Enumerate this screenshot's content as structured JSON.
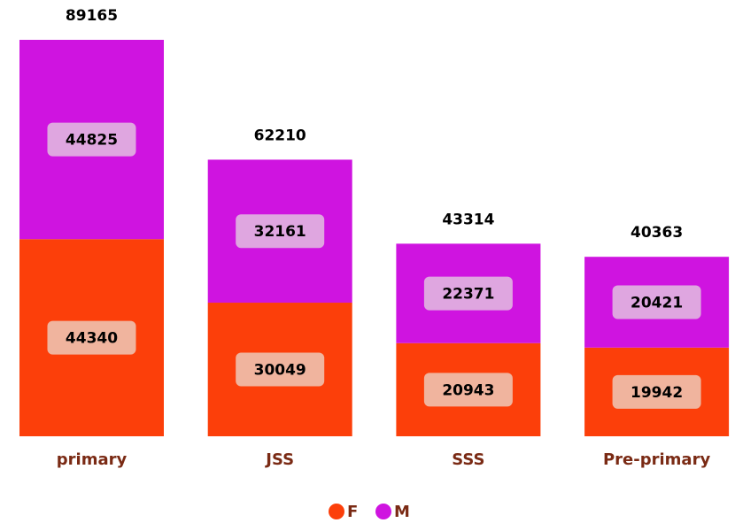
{
  "chart_data": {
    "type": "stacked-bar",
    "categories": [
      "primary",
      "JSS",
      "SSS",
      "Pre-primary"
    ],
    "series": [
      {
        "name": "F",
        "color": "#fc3f0a",
        "label_color": "#f0b49e",
        "values": [
          44340,
          30049,
          20943,
          19942
        ]
      },
      {
        "name": "M",
        "color": "#cf14e0",
        "label_color": "#dfa6e0",
        "values": [
          44825,
          32161,
          22371,
          20421
        ]
      }
    ],
    "totals": [
      89165,
      62210,
      43314,
      40363
    ]
  }
}
